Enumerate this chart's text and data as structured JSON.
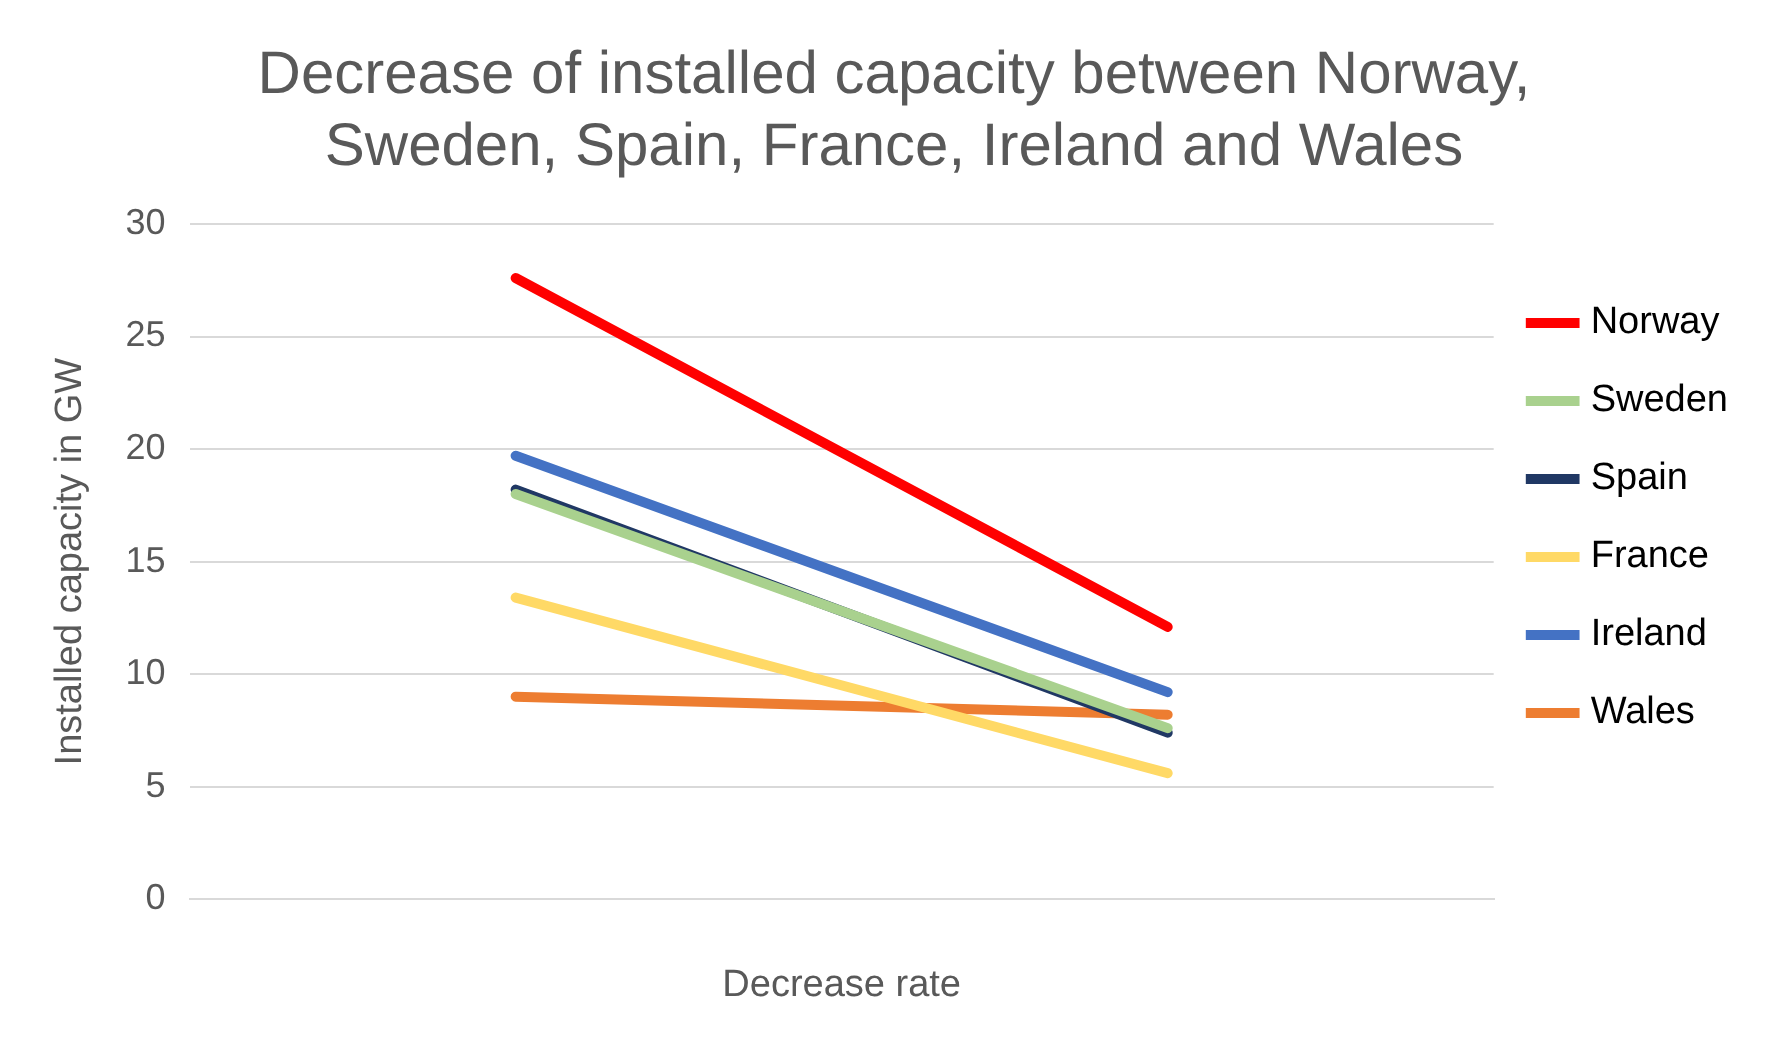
{
  "chart_data": {
    "type": "line",
    "title": "Decrease of installed capacity between Norway, Sweden, Spain, France, Ireland and Wales",
    "xlabel": "Decrease rate",
    "ylabel": "Installed capacity in GW",
    "categories": [
      null,
      null
    ],
    "series": [
      {
        "name": "Norway",
        "color": "#ff0000",
        "values": [
          27.6,
          12.1
        ]
      },
      {
        "name": "Sweden",
        "color": "#a9d18e",
        "values": [
          18.0,
          7.6
        ]
      },
      {
        "name": "Spain",
        "color": "#203864",
        "values": [
          18.2,
          7.4
        ]
      },
      {
        "name": "France",
        "color": "#ffd966",
        "values": [
          13.4,
          5.6
        ]
      },
      {
        "name": "Ireland",
        "color": "#4472c4",
        "values": [
          19.7,
          9.2
        ]
      },
      {
        "name": "Wales",
        "color": "#ed7d31",
        "values": [
          9.0,
          8.2
        ]
      }
    ],
    "ylim": [
      0,
      30
    ],
    "yticks": [
      0,
      5,
      10,
      15,
      20,
      25,
      30
    ],
    "grid": "y",
    "legend": "right",
    "marker": "none",
    "line_style": "solid"
  }
}
